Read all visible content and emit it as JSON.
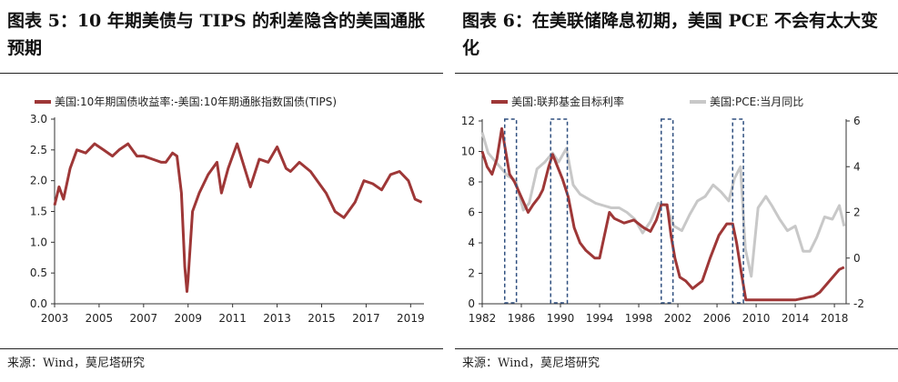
{
  "left": {
    "title": "图表 5：10 年期美债与 TIPS 的利差隐含的美国通胀预期",
    "source": "来源：Wind，莫尼塔研究",
    "chart_data": {
      "type": "line",
      "title": "",
      "legend": [
        "美国:10年期国债收益率:-美国:10年期通胀指数国债(TIPS)"
      ],
      "legend_position": "top-left",
      "xlabel": "",
      "ylabel": "",
      "x_ticks": [
        "2003",
        "2005",
        "2007",
        "2009",
        "2011",
        "2013",
        "2015",
        "2017",
        "2019"
      ],
      "y_ticks": [
        "0.0",
        "0.5",
        "1.0",
        "1.5",
        "2.0",
        "2.5",
        "3.0"
      ],
      "xlim": [
        2003,
        2019.6
      ],
      "ylim": [
        0,
        3
      ],
      "grid": false,
      "color": "#9e3737",
      "series": [
        {
          "name": "美国:10年期国债收益率:-美国:10年期通胀指数国债(TIPS)",
          "x": [
            2003.0,
            2003.2,
            2003.4,
            2003.7,
            2004.0,
            2004.4,
            2004.8,
            2005.2,
            2005.6,
            2005.9,
            2006.3,
            2006.7,
            2007.0,
            2007.4,
            2007.8,
            2008.0,
            2008.3,
            2008.5,
            2008.7,
            2008.85,
            2008.95,
            2009.0,
            2009.2,
            2009.5,
            2009.9,
            2010.3,
            2010.5,
            2010.8,
            2011.2,
            2011.5,
            2011.8,
            2012.2,
            2012.6,
            2013.0,
            2013.4,
            2013.6,
            2014.0,
            2014.5,
            2014.9,
            2015.2,
            2015.6,
            2016.0,
            2016.5,
            2016.9,
            2017.3,
            2017.7,
            2018.1,
            2018.5,
            2018.9,
            2019.2,
            2019.5
          ],
          "y": [
            1.6,
            1.9,
            1.7,
            2.2,
            2.5,
            2.45,
            2.6,
            2.5,
            2.4,
            2.5,
            2.6,
            2.4,
            2.4,
            2.35,
            2.3,
            2.3,
            2.45,
            2.4,
            1.8,
            0.6,
            0.2,
            0.4,
            1.5,
            1.8,
            2.1,
            2.3,
            1.8,
            2.2,
            2.6,
            2.25,
            1.9,
            2.35,
            2.3,
            2.55,
            2.2,
            2.15,
            2.3,
            2.15,
            1.95,
            1.8,
            1.5,
            1.4,
            1.65,
            2.0,
            1.95,
            1.85,
            2.1,
            2.15,
            2.0,
            1.7,
            1.65
          ]
        }
      ]
    }
  },
  "right": {
    "title": "图表 6：在美联储降息初期，美国 PCE 不会有太大变化",
    "source": "来源：Wind，莫尼塔研究",
    "chart_data": {
      "type": "line",
      "title": "",
      "legend": [
        "美国:联邦基金目标利率",
        "美国:PCE:当月同比"
      ],
      "legend_position": "top",
      "xlabel": "",
      "ylabel": "",
      "x_ticks": [
        "1982",
        "1986",
        "1990",
        "1994",
        "1998",
        "2002",
        "2006",
        "2010",
        "2014",
        "2018"
      ],
      "y_ticks_left": [
        "0",
        "2",
        "4",
        "6",
        "8",
        "10",
        "12"
      ],
      "y_ticks_right": [
        "-2",
        "0",
        "2",
        "4",
        "6"
      ],
      "xlim": [
        1982,
        2019.2
      ],
      "ylim_left": [
        0,
        12
      ],
      "ylim_right": [
        -2,
        6
      ],
      "grid": false,
      "series": [
        {
          "name": "美国:联邦基金目标利率",
          "axis": "left",
          "color": "#9e3737",
          "x": [
            1982.0,
            1982.5,
            1983.0,
            1983.5,
            1984.0,
            1984.4,
            1984.8,
            1985.3,
            1986.0,
            1986.7,
            1987.2,
            1987.8,
            1988.2,
            1988.8,
            1989.2,
            1989.7,
            1990.2,
            1990.8,
            1991.4,
            1992.0,
            1992.6,
            1993.5,
            1994.0,
            1994.5,
            1995.0,
            1995.5,
            1996.5,
            1997.5,
            1998.5,
            1999.2,
            1999.8,
            2000.3,
            2000.9,
            2001.3,
            2001.7,
            2002.2,
            2002.8,
            2003.5,
            2004.5,
            2005.3,
            2006.2,
            2007.0,
            2007.6,
            2008.0,
            2008.5,
            2008.95,
            2010.0,
            2012.0,
            2014.0,
            2015.9,
            2016.5,
            2017.5,
            2018.5,
            2019.0
          ],
          "y": [
            10.0,
            9.0,
            8.5,
            9.5,
            11.5,
            10.0,
            8.5,
            8.0,
            7.0,
            6.0,
            6.5,
            7.0,
            7.5,
            9.0,
            9.8,
            9.0,
            8.2,
            7.0,
            5.0,
            4.0,
            3.5,
            3.0,
            3.0,
            4.5,
            6.0,
            5.6,
            5.3,
            5.5,
            5.0,
            4.75,
            5.5,
            6.5,
            6.5,
            4.5,
            3.0,
            1.75,
            1.5,
            1.0,
            1.5,
            3.0,
            4.5,
            5.25,
            5.25,
            4.0,
            2.0,
            0.25,
            0.25,
            0.25,
            0.25,
            0.5,
            0.75,
            1.5,
            2.25,
            2.4
          ]
        },
        {
          "name": "美国:PCE:当月同比",
          "axis": "right",
          "color": "#c8c8c8",
          "x": [
            1982.0,
            1982.6,
            1983.2,
            1983.8,
            1984.6,
            1985.4,
            1986.2,
            1986.8,
            1987.6,
            1988.4,
            1989.2,
            1989.8,
            1990.6,
            1991.3,
            1992.0,
            1992.8,
            1993.6,
            1994.4,
            1995.2,
            1996.0,
            1996.8,
            1997.6,
            1998.4,
            1999.2,
            2000.0,
            2000.8,
            2001.6,
            2002.4,
            2003.2,
            2004.0,
            2004.8,
            2005.6,
            2006.4,
            2007.2,
            2007.8,
            2008.4,
            2008.9,
            2009.5,
            2010.2,
            2011.0,
            2011.6,
            2012.4,
            2013.2,
            2014.0,
            2014.8,
            2015.5,
            2016.2,
            2017.0,
            2017.8,
            2018.5,
            2019.0
          ],
          "y": [
            5.5,
            4.6,
            4.3,
            4.0,
            3.6,
            3.4,
            2.1,
            2.4,
            3.9,
            4.2,
            4.6,
            4.2,
            4.8,
            3.2,
            2.8,
            2.6,
            2.4,
            2.3,
            2.2,
            2.2,
            2.0,
            1.7,
            1.1,
            1.6,
            2.4,
            2.3,
            1.4,
            1.2,
            1.9,
            2.5,
            2.7,
            3.2,
            2.9,
            2.5,
            3.5,
            4.0,
            0.4,
            -0.8,
            2.2,
            2.7,
            2.3,
            1.7,
            1.2,
            1.4,
            0.3,
            0.3,
            0.9,
            1.8,
            1.7,
            2.3,
            1.4
          ]
        }
      ],
      "highlight_periods": [
        [
          1984.3,
          1985.5
        ],
        [
          1989.0,
          1990.7
        ],
        [
          2000.3,
          2001.5
        ],
        [
          2007.6,
          2008.7
        ]
      ]
    }
  }
}
